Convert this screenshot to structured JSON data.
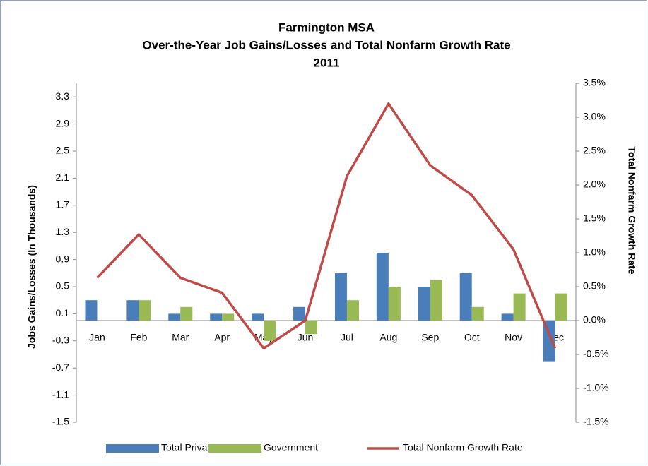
{
  "chart_data": {
    "type": "bar",
    "title": [
      "Farmington MSA",
      "Over-the-Year Job Gains/Losses and Total Nonfarm Growth Rate",
      "2011"
    ],
    "y_label": "Jobs Gains/Losses (In Thousands)",
    "y2_label": "Total Nonfarm Growth Rate",
    "categories": [
      "Jan",
      "Feb",
      "Mar",
      "Apr",
      "May",
      "Jun",
      "Jul",
      "Aug",
      "Sep",
      "Oct",
      "Nov",
      "Dec"
    ],
    "series": [
      {
        "name": "Total Private",
        "type": "bar",
        "color": "#4a7ebb",
        "values": [
          0.3,
          0.3,
          0.1,
          0.1,
          0.1,
          0.2,
          0.7,
          1.0,
          0.5,
          0.7,
          0.1,
          -0.6
        ]
      },
      {
        "name": "Government",
        "type": "bar",
        "color": "#98b954",
        "values": [
          0,
          0.3,
          0.2,
          0.1,
          -0.3,
          -0.2,
          0.3,
          0.5,
          0.6,
          0.2,
          0.4,
          0.4
        ]
      },
      {
        "name": "Total Nonfarm Growth Rate",
        "type": "line",
        "axis": "y2",
        "color": "#be4b48",
        "values": [
          0.63,
          1.27,
          0.63,
          0.41,
          -0.41,
          0.0,
          2.13,
          3.2,
          2.29,
          1.85,
          1.05,
          -0.41
        ]
      }
    ],
    "ylim": [
      -1.5,
      3.5
    ],
    "yticks": [
      -1.5,
      -1.1,
      -0.7,
      -0.3,
      0.1,
      0.5,
      0.9,
      1.3,
      1.7,
      2.1,
      2.5,
      2.9,
      3.3
    ],
    "y2lim": [
      -1.5,
      3.5
    ],
    "y2ticks": [
      {
        "value": -1.5,
        "label": "-1.5%"
      },
      {
        "value": -1.0,
        "label": "-1.0%"
      },
      {
        "value": -0.5,
        "label": "-0.5%"
      },
      {
        "value": 0.0,
        "label": "0.0%"
      },
      {
        "value": 0.5,
        "label": "0.5%"
      },
      {
        "value": 1.0,
        "label": "1.0%"
      },
      {
        "value": 1.5,
        "label": "1.5%"
      },
      {
        "value": 2.0,
        "label": "2.0%"
      },
      {
        "value": 2.5,
        "label": "2.5%"
      },
      {
        "value": 3.0,
        "label": "3.0%"
      },
      {
        "value": 3.5,
        "label": "3.5%"
      }
    ],
    "legend": "bottom"
  }
}
